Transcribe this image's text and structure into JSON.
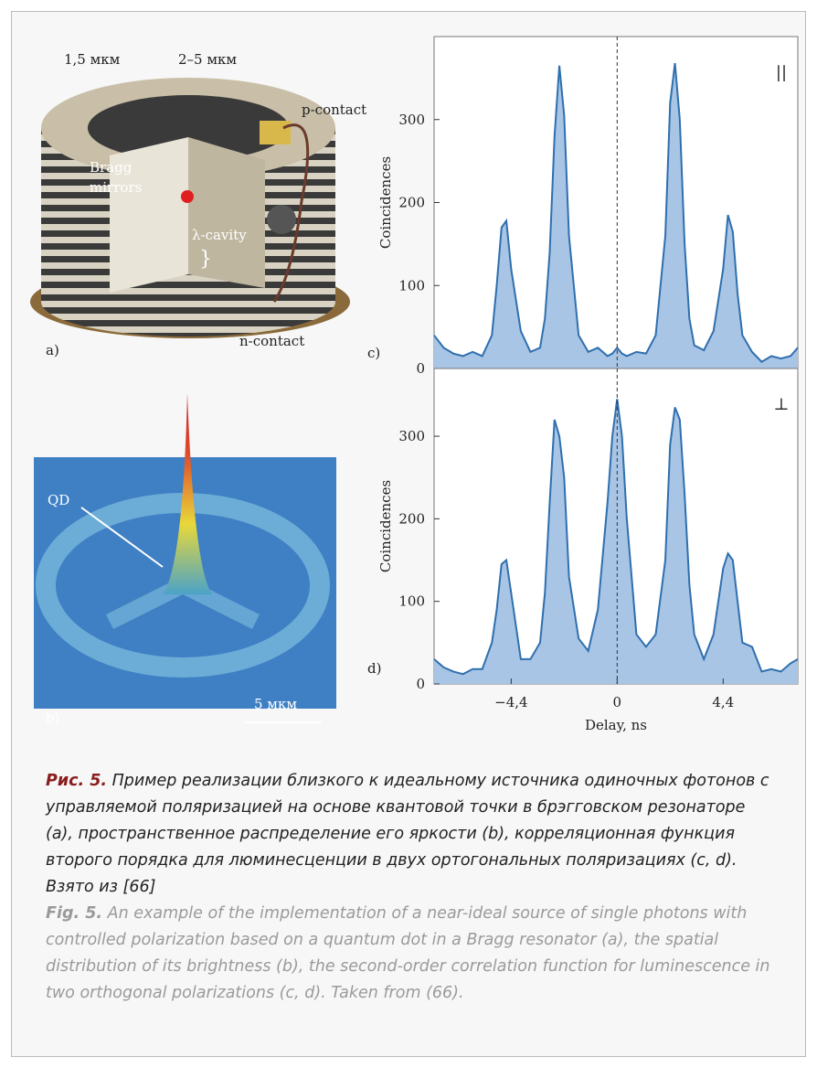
{
  "figure": {
    "panel_a": {
      "label": "a)",
      "texts": [
        "1,5 мкм",
        "2–5 мкм",
        "p-contact",
        "Bragg",
        "mirrors",
        "λ-cavity",
        "}",
        "n-contact"
      ]
    },
    "panel_b": {
      "label": "b)",
      "qd": "QD",
      "scale": "5 мкм"
    }
  },
  "chart_data": [
    {
      "type": "line",
      "panel": "c)",
      "symbol": "||",
      "ylabel": "Coincidences",
      "color": "#2f6fae",
      "fill": "#a8c5e5",
      "xlim": [
        -7.6,
        7.5
      ],
      "ylim": [
        0,
        400
      ],
      "yticks": [
        0,
        100,
        200,
        300
      ],
      "vline": 0,
      "x": [
        -7.6,
        -7.2,
        -6.8,
        -6.4,
        -6.0,
        -5.6,
        -5.2,
        -5.0,
        -4.8,
        -4.6,
        -4.4,
        -4.0,
        -3.6,
        -3.2,
        -3.0,
        -2.8,
        -2.6,
        -2.4,
        -2.2,
        -2.0,
        -1.6,
        -1.2,
        -0.8,
        -0.4,
        -0.2,
        0,
        0.2,
        0.4,
        0.8,
        1.2,
        1.6,
        2.0,
        2.2,
        2.4,
        2.6,
        2.8,
        3.0,
        3.2,
        3.6,
        4.0,
        4.4,
        4.6,
        4.8,
        5.0,
        5.2,
        5.6,
        6.0,
        6.4,
        6.8,
        7.2,
        7.5
      ],
      "values": [
        40,
        25,
        18,
        15,
        20,
        15,
        40,
        100,
        170,
        178,
        120,
        45,
        20,
        25,
        60,
        140,
        280,
        365,
        305,
        160,
        40,
        20,
        25,
        15,
        18,
        25,
        18,
        15,
        20,
        18,
        40,
        160,
        320,
        368,
        300,
        150,
        60,
        28,
        22,
        45,
        120,
        185,
        165,
        90,
        40,
        20,
        8,
        15,
        12,
        15,
        25
      ]
    },
    {
      "type": "line",
      "panel": "d)",
      "symbol": "⊥",
      "ylabel": "Coincidences",
      "xlabel": "Delay, ns",
      "color": "#2f6fae",
      "fill": "#a8c5e5",
      "xlim": [
        -7.6,
        7.5
      ],
      "ylim": [
        0,
        382
      ],
      "yticks": [
        0,
        100,
        200,
        300
      ],
      "xticks": [
        {
          "value": -4.4,
          "label": "−4,4"
        },
        0,
        {
          "value": 4.4,
          "label": "4,4"
        }
      ],
      "vline": 0,
      "x": [
        -7.6,
        -7.2,
        -6.8,
        -6.4,
        -6.0,
        -5.6,
        -5.2,
        -5.0,
        -4.8,
        -4.6,
        -4.4,
        -4.0,
        -3.6,
        -3.2,
        -3.0,
        -2.8,
        -2.6,
        -2.4,
        -2.2,
        -2.0,
        -1.6,
        -1.2,
        -0.8,
        -0.4,
        -0.2,
        0,
        0.2,
        0.4,
        0.8,
        1.2,
        1.6,
        2.0,
        2.2,
        2.4,
        2.6,
        2.8,
        3.0,
        3.2,
        3.6,
        4.0,
        4.4,
        4.6,
        4.8,
        5.0,
        5.2,
        5.6,
        6.0,
        6.4,
        6.8,
        7.2,
        7.5
      ],
      "values": [
        30,
        20,
        15,
        12,
        18,
        18,
        50,
        90,
        145,
        150,
        110,
        30,
        30,
        50,
        110,
        220,
        320,
        300,
        250,
        130,
        55,
        40,
        90,
        220,
        300,
        345,
        300,
        200,
        60,
        45,
        60,
        150,
        290,
        335,
        320,
        230,
        120,
        60,
        30,
        60,
        140,
        158,
        150,
        100,
        50,
        45,
        15,
        18,
        15,
        25,
        30
      ]
    }
  ],
  "caption": {
    "ru_label": "Рис. 5.",
    "ru_text": "Пример реализации близкого к идеальному источника одиночных фотонов с управляемой поляризацией на основе квантовой точки в брэгговском резонаторе (a), пространственное распределение его яркости (b), корреляционная функция второго порядка для люминесценции в двух ортогональных поляризациях (c, d). Взято из [66]",
    "en_label": "Fig. 5.",
    "en_text": "An example of the implementation of a near-ideal source of single photons with controlled polarization based on a quantum dot in a Bragg resonator (a), the spatial distribution of its brightness (b), the second-order correlation function for luminescence in two orthogonal polarizations (c, d). Taken from (66)."
  }
}
